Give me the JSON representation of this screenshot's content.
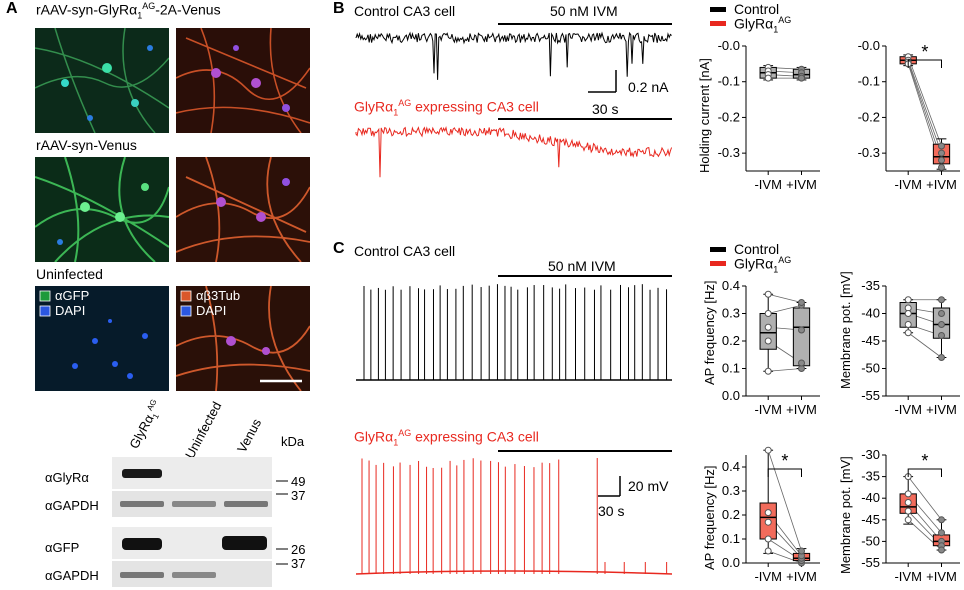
{
  "panel_letters": {
    "a": "A",
    "b": "B",
    "c": "C"
  },
  "panel_a": {
    "row1_label": "rAAV-syn-GlyRα1AG-2A-Venus",
    "row2_label": "rAAV-syn-Venus",
    "row3_label": "Uninfected",
    "legend_left": [
      "αGFP",
      "DAPI"
    ],
    "legend_right": [
      "αβ3Tub",
      "DAPI"
    ],
    "blot_columns": [
      "GlyRα1AG",
      "Uninfected",
      "Venus"
    ],
    "blot_kda_header": "kDa",
    "blot_rows": [
      "αGlyRα",
      "αGAPDH",
      "αGFP",
      "αGAPDH"
    ],
    "kda_marks": [
      "49",
      "37",
      "26",
      "37"
    ],
    "colors": {
      "green": "#3ec46a",
      "red": "#d9572a",
      "blue": "#2b57e0"
    }
  },
  "panel_b": {
    "control_label": "Control CA3 cell",
    "glyr_label": "GlyRα1AG expressing CA3 cell",
    "ivm_label": "50 nM IVM",
    "scale_y": "0.2 nA",
    "scale_x": "30 s",
    "legend": [
      "Control",
      "GlyRα1AG"
    ],
    "ylabel": "Holding current [nA]",
    "star": "*"
  },
  "panel_c": {
    "control_label": "Control CA3 cell",
    "glyr_label": "GlyRα1AG expressing CA3 cell",
    "ivm_label": "50 nM IVM",
    "scale_y": "20 mV",
    "scale_x": "30 s",
    "legend": [
      "Control",
      "GlyRα1AG"
    ],
    "ylabel_ap": "AP frequency [Hz]",
    "ylabel_mp": "Membrane pot. [mV]",
    "star": "*"
  },
  "chart_data": [
    {
      "type": "box",
      "name_panel": "B-control",
      "ylabel": "Holding current [nA]",
      "categories": [
        "-IVM",
        "+IVM"
      ],
      "ylim": [
        -0.35,
        0.0
      ],
      "yticks": [
        "-0.0",
        "-0.1",
        "-0.2",
        "-0.3"
      ],
      "box": [
        {
          "min": -0.095,
          "q1": -0.09,
          "median": -0.075,
          "q3": -0.06,
          "max": -0.055
        },
        {
          "min": -0.095,
          "q1": -0.09,
          "median": -0.08,
          "q3": -0.065,
          "max": -0.06
        }
      ],
      "points": [
        [
          -0.06,
          -0.07,
          -0.08,
          -0.09
        ],
        [
          -0.065,
          -0.075,
          -0.085,
          -0.09
        ]
      ],
      "color": "#b0b0b0"
    },
    {
      "type": "box",
      "name_panel": "B-glyr",
      "categories": [
        "-IVM",
        "+IVM"
      ],
      "ylim": [
        -0.35,
        0.0
      ],
      "yticks": [
        "-0.0",
        "-0.1",
        "-0.2",
        "-0.3"
      ],
      "box": [
        {
          "min": -0.055,
          "q1": -0.05,
          "median": -0.04,
          "q3": -0.03,
          "max": -0.025
        },
        {
          "min": -0.345,
          "q1": -0.33,
          "median": -0.31,
          "q3": -0.275,
          "max": -0.26
        }
      ],
      "points": [
        [
          -0.03,
          -0.04,
          -0.045,
          -0.05
        ],
        [
          -0.28,
          -0.3,
          -0.32,
          -0.34
        ]
      ],
      "color": "#f26b5b",
      "star": true
    },
    {
      "type": "box",
      "name_panel": "C-control-ap",
      "ylabel": "AP frequency [Hz]",
      "categories": [
        "-IVM",
        "+IVM"
      ],
      "ylim": [
        0.0,
        0.4
      ],
      "yticks": [
        "0.0",
        "0.1",
        "0.2",
        "0.3",
        "0.4"
      ],
      "box": [
        {
          "min": 0.09,
          "q1": 0.17,
          "median": 0.23,
          "q3": 0.3,
          "max": 0.37
        },
        {
          "min": 0.1,
          "q1": 0.11,
          "median": 0.25,
          "q3": 0.32,
          "max": 0.34
        }
      ],
      "points": [
        [
          0.09,
          0.2,
          0.25,
          0.3,
          0.37
        ],
        [
          0.1,
          0.12,
          0.24,
          0.33,
          0.34
        ]
      ],
      "color": "#b0b0b0"
    },
    {
      "type": "box",
      "name_panel": "C-control-mp",
      "ylabel": "Membrane pot. [mV]",
      "categories": [
        "-IVM",
        "+IVM"
      ],
      "ylim": [
        -55,
        -35
      ],
      "yticks": [
        "-35",
        "-40",
        "-45",
        "-50",
        "-55"
      ],
      "box": [
        {
          "min": -43.5,
          "q1": -42.5,
          "median": -40,
          "q3": -38,
          "max": -37.5
        },
        {
          "min": -48,
          "q1": -44.5,
          "median": -42,
          "q3": -39,
          "max": -37.5
        }
      ],
      "points": [
        [
          -37.5,
          -39,
          -40,
          -42,
          -43.5
        ],
        [
          -37.5,
          -40,
          -42,
          -44,
          -48
        ]
      ],
      "color": "#b0b0b0"
    },
    {
      "type": "box",
      "name_panel": "C-glyr-ap",
      "ylabel": "AP frequency [Hz]",
      "categories": [
        "-IVM",
        "+IVM"
      ],
      "ylim": [
        0.0,
        0.45
      ],
      "yticks": [
        "0.0",
        "0.1",
        "0.2",
        "0.3",
        "0.4"
      ],
      "box": [
        {
          "min": 0.04,
          "q1": 0.1,
          "median": 0.19,
          "q3": 0.25,
          "max": 0.47
        },
        {
          "min": 0.0,
          "q1": 0.01,
          "median": 0.02,
          "q3": 0.04,
          "max": 0.06
        }
      ],
      "points": [
        [
          0.05,
          0.1,
          0.17,
          0.21,
          0.47
        ],
        [
          0.0,
          0.01,
          0.02,
          0.03,
          0.05
        ]
      ],
      "color": "#f26b5b",
      "star": true
    },
    {
      "type": "box",
      "name_panel": "C-glyr-mp",
      "ylabel": "Membrane pot. [mV]",
      "categories": [
        "-IVM",
        "+IVM"
      ],
      "ylim": [
        -55,
        -30
      ],
      "yticks": [
        "-30",
        "-35",
        "-40",
        "-45",
        "-50",
        "-55"
      ],
      "box": [
        {
          "min": -46,
          "q1": -43.5,
          "median": -42,
          "q3": -39,
          "max": -35
        },
        {
          "min": -52,
          "q1": -51,
          "median": -50,
          "q3": -48.5,
          "max": -45
        }
      ],
      "points": [
        [
          -35,
          -39,
          -41,
          -43,
          -45
        ],
        [
          -45,
          -48,
          -50,
          -51,
          -52
        ]
      ],
      "color": "#f26b5b",
      "star": true
    }
  ]
}
